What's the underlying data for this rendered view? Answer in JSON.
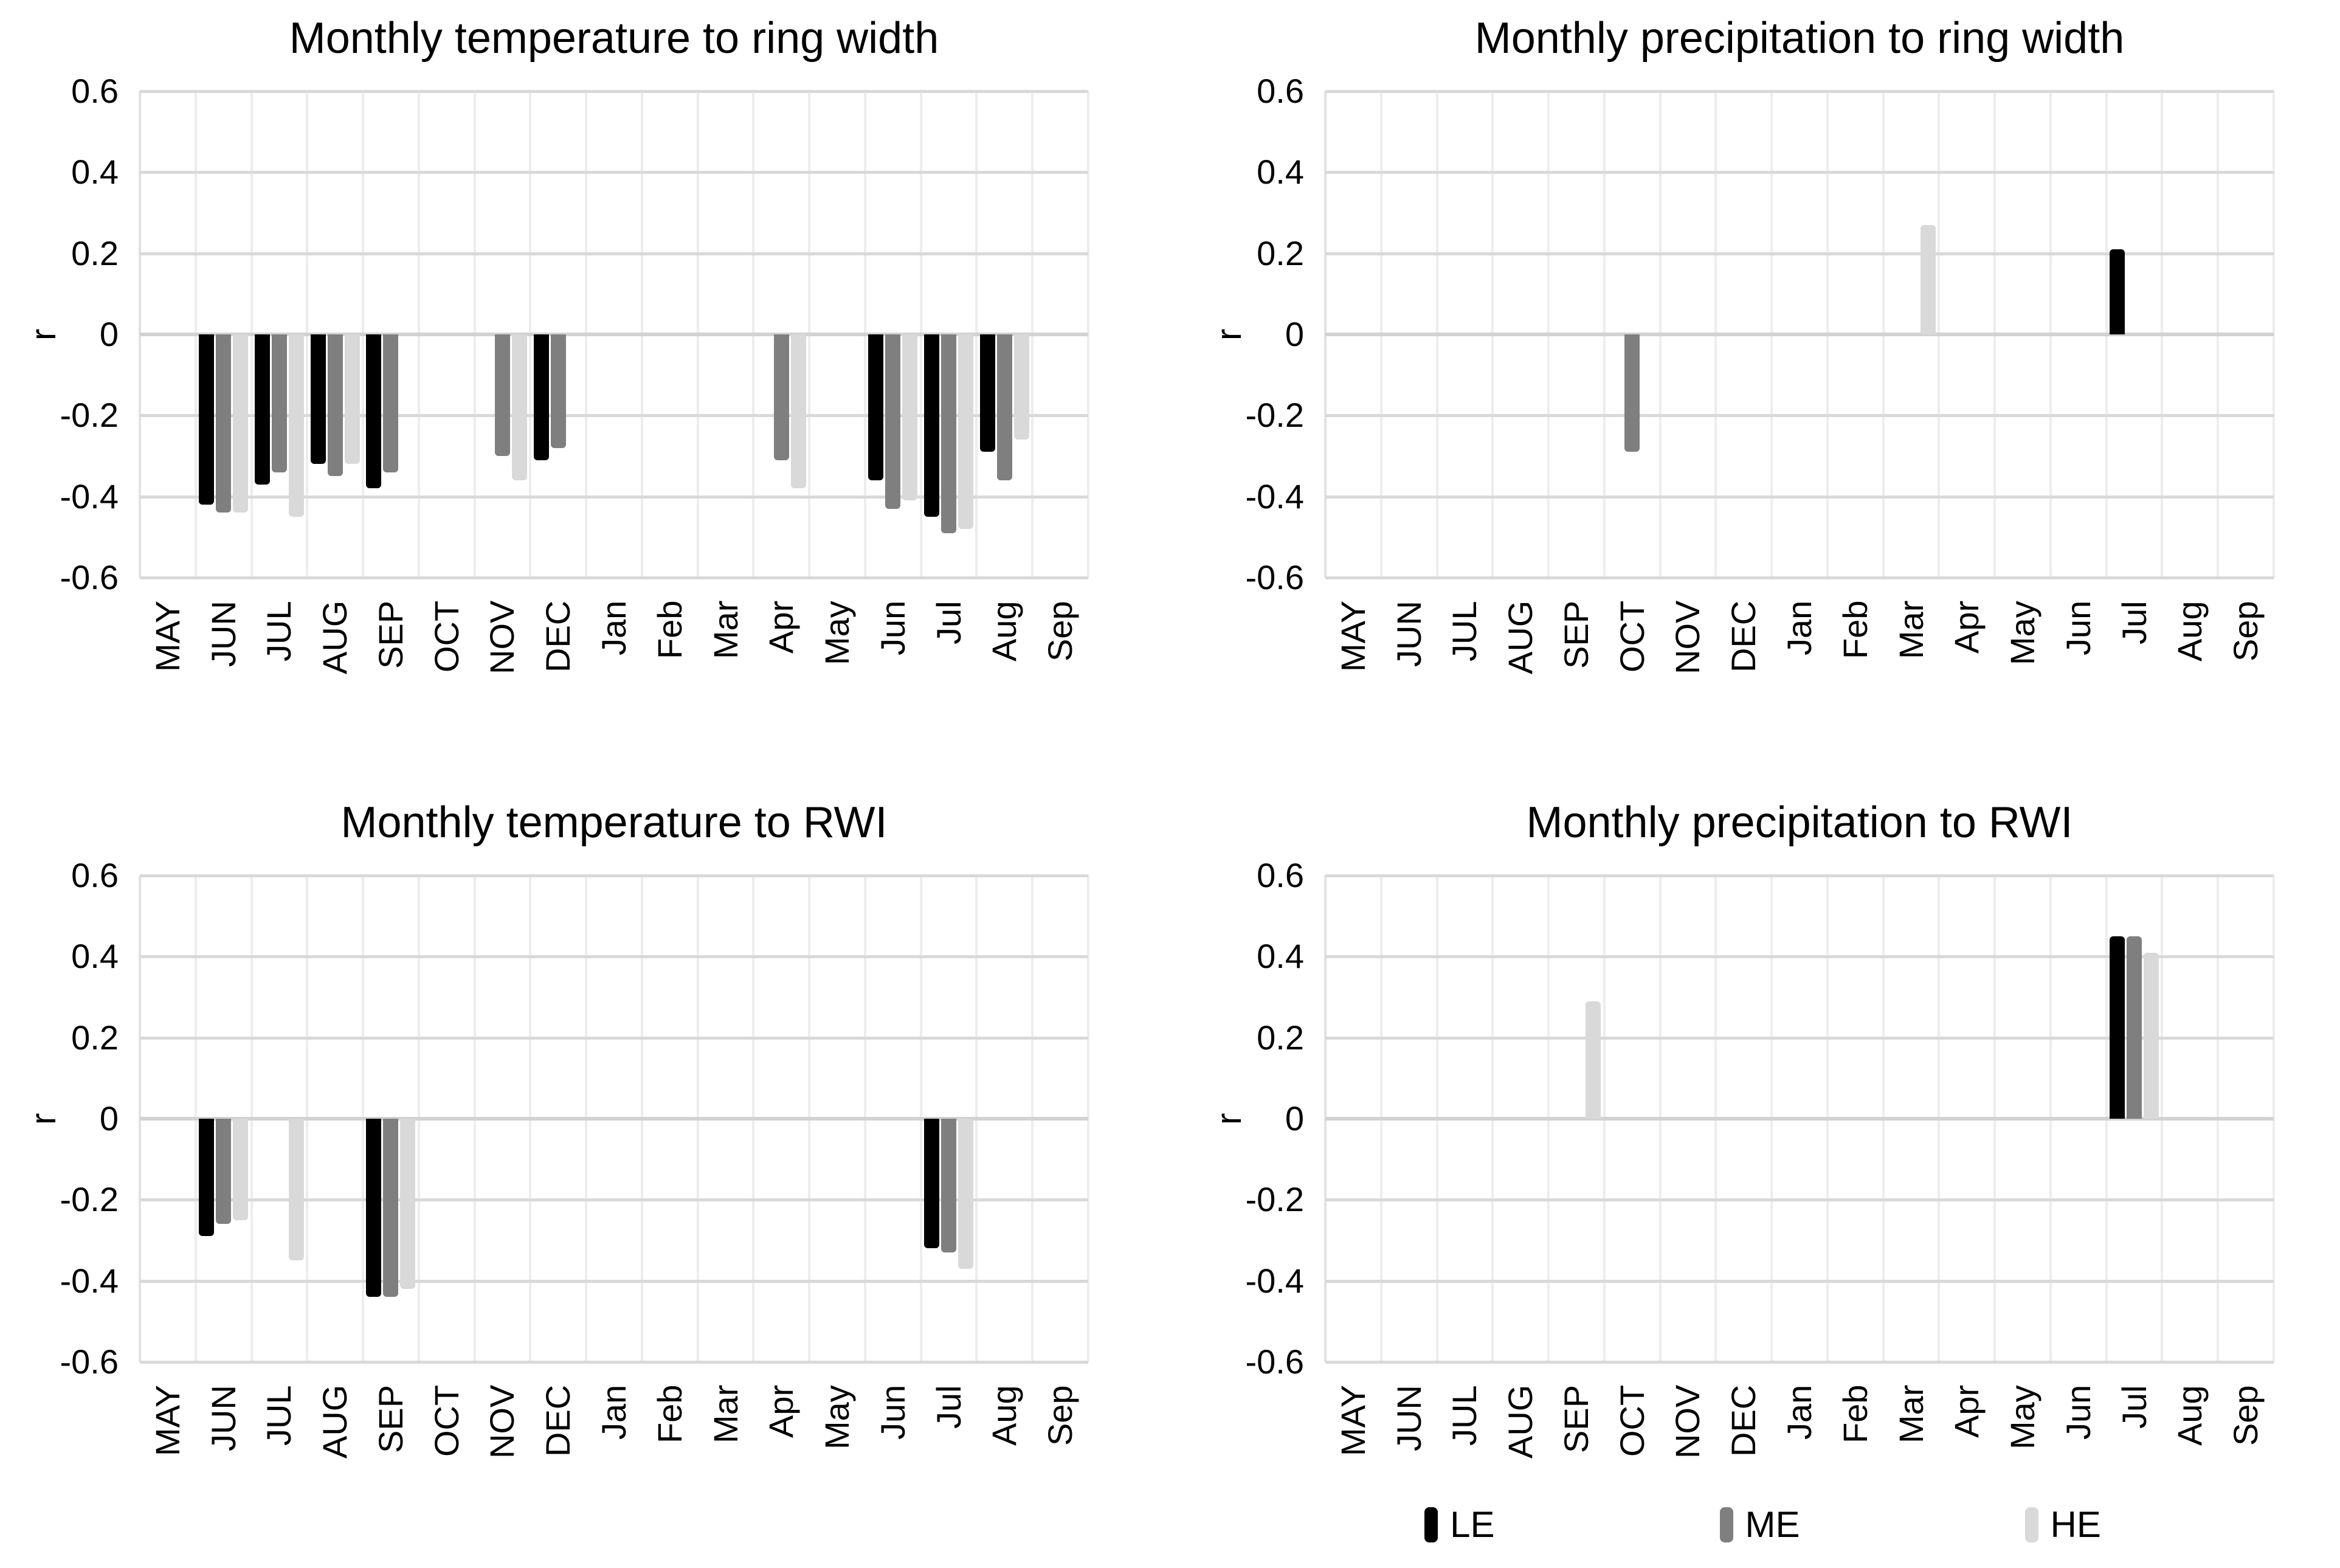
{
  "axis": {
    "ylabel": "r",
    "yticks": [
      "0.6",
      "0.4",
      "0.2",
      "0",
      "-0.2",
      "-0.4",
      "-0.6"
    ],
    "ymin": -0.6,
    "ymax": 0.6
  },
  "legend": {
    "items": [
      {
        "label": "LE",
        "color": "#000000"
      },
      {
        "label": "ME",
        "color": "#7f7f7f"
      },
      {
        "label": "HE",
        "color": "#d9d9d9"
      }
    ]
  },
  "colors": {
    "gridline": "#d9d9d9",
    "vertical_gridline": "#ededed",
    "background": "#ffffff"
  },
  "chart_data": [
    {
      "type": "bar",
      "position": "top-left",
      "title": "Monthly temperature to ring width",
      "xlabel": "",
      "ylabel": "r",
      "ylim": [
        -0.6,
        0.6
      ],
      "grid": true,
      "legend_position": "none",
      "categories": [
        "MAY",
        "JUN",
        "JUL",
        "AUG",
        "SEP",
        "OCT",
        "NOV",
        "DEC",
        "Jan",
        "Feb",
        "Mar",
        "Apr",
        "May",
        "Jun",
        "Jul",
        "Aug",
        "Sep"
      ],
      "series": [
        {
          "name": "LE",
          "color": "#000000",
          "values": [
            null,
            -0.42,
            -0.37,
            -0.32,
            -0.38,
            null,
            null,
            -0.31,
            null,
            null,
            null,
            null,
            null,
            -0.36,
            -0.45,
            -0.29,
            null
          ]
        },
        {
          "name": "ME",
          "color": "#7f7f7f",
          "values": [
            null,
            -0.44,
            -0.34,
            -0.35,
            -0.34,
            null,
            -0.3,
            -0.28,
            null,
            null,
            null,
            -0.31,
            null,
            -0.43,
            -0.49,
            -0.36,
            null
          ]
        },
        {
          "name": "HE",
          "color": "#d9d9d9",
          "values": [
            null,
            -0.44,
            -0.45,
            -0.32,
            null,
            null,
            -0.36,
            null,
            null,
            null,
            null,
            -0.38,
            null,
            -0.41,
            -0.48,
            -0.26,
            null
          ]
        }
      ]
    },
    {
      "type": "bar",
      "position": "top-right",
      "title": "Monthly precipitation to ring width",
      "xlabel": "",
      "ylabel": "r",
      "ylim": [
        -0.6,
        0.6
      ],
      "grid": true,
      "legend_position": "none",
      "categories": [
        "MAY",
        "JUN",
        "JUL",
        "AUG",
        "SEP",
        "OCT",
        "NOV",
        "DEC",
        "Jan",
        "Feb",
        "Mar",
        "Apr",
        "May",
        "Jun",
        "Jul",
        "Aug",
        "Sep"
      ],
      "series": [
        {
          "name": "LE",
          "color": "#000000",
          "values": [
            null,
            null,
            null,
            null,
            null,
            null,
            null,
            null,
            null,
            null,
            null,
            null,
            null,
            null,
            0.21,
            null,
            null
          ]
        },
        {
          "name": "ME",
          "color": "#7f7f7f",
          "values": [
            null,
            null,
            null,
            null,
            null,
            -0.29,
            null,
            null,
            null,
            null,
            null,
            null,
            null,
            null,
            null,
            null,
            null
          ]
        },
        {
          "name": "HE",
          "color": "#d9d9d9",
          "values": [
            null,
            null,
            null,
            null,
            null,
            null,
            null,
            null,
            null,
            null,
            0.27,
            null,
            null,
            null,
            null,
            null,
            null
          ]
        }
      ]
    },
    {
      "type": "bar",
      "position": "bottom-left",
      "title": "Monthly temperature to RWI",
      "xlabel": "",
      "ylabel": "r",
      "ylim": [
        -0.6,
        0.6
      ],
      "grid": true,
      "legend_position": "none",
      "categories": [
        "MAY",
        "JUN",
        "JUL",
        "AUG",
        "SEP",
        "OCT",
        "NOV",
        "DEC",
        "Jan",
        "Feb",
        "Mar",
        "Apr",
        "May",
        "Jun",
        "Jul",
        "Aug",
        "Sep"
      ],
      "series": [
        {
          "name": "LE",
          "color": "#000000",
          "values": [
            null,
            -0.29,
            null,
            null,
            -0.44,
            null,
            null,
            null,
            null,
            null,
            null,
            null,
            null,
            null,
            -0.32,
            null,
            null
          ]
        },
        {
          "name": "ME",
          "color": "#7f7f7f",
          "values": [
            null,
            -0.26,
            null,
            null,
            -0.44,
            null,
            null,
            null,
            null,
            null,
            null,
            null,
            null,
            null,
            -0.33,
            null,
            null
          ]
        },
        {
          "name": "HE",
          "color": "#d9d9d9",
          "values": [
            null,
            -0.25,
            -0.35,
            null,
            -0.42,
            null,
            null,
            null,
            null,
            null,
            null,
            null,
            null,
            null,
            -0.37,
            null,
            null
          ]
        }
      ]
    },
    {
      "type": "bar",
      "position": "bottom-right",
      "title": "Monthly precipitation to RWI",
      "xlabel": "",
      "ylabel": "r",
      "ylim": [
        -0.6,
        0.6
      ],
      "grid": true,
      "legend_position": "bottom",
      "categories": [
        "MAY",
        "JUN",
        "JUL",
        "AUG",
        "SEP",
        "OCT",
        "NOV",
        "DEC",
        "Jan",
        "Feb",
        "Mar",
        "Apr",
        "May",
        "Jun",
        "Jul",
        "Aug",
        "Sep"
      ],
      "series": [
        {
          "name": "LE",
          "color": "#000000",
          "values": [
            null,
            null,
            null,
            null,
            null,
            null,
            null,
            null,
            null,
            null,
            null,
            null,
            null,
            null,
            0.45,
            null,
            null
          ]
        },
        {
          "name": "ME",
          "color": "#7f7f7f",
          "values": [
            null,
            null,
            null,
            null,
            null,
            null,
            null,
            null,
            null,
            null,
            null,
            null,
            null,
            null,
            0.45,
            null,
            null
          ]
        },
        {
          "name": "HE",
          "color": "#d9d9d9",
          "values": [
            null,
            null,
            null,
            null,
            0.29,
            null,
            null,
            null,
            null,
            null,
            null,
            null,
            null,
            null,
            0.41,
            null,
            null
          ]
        }
      ]
    }
  ]
}
